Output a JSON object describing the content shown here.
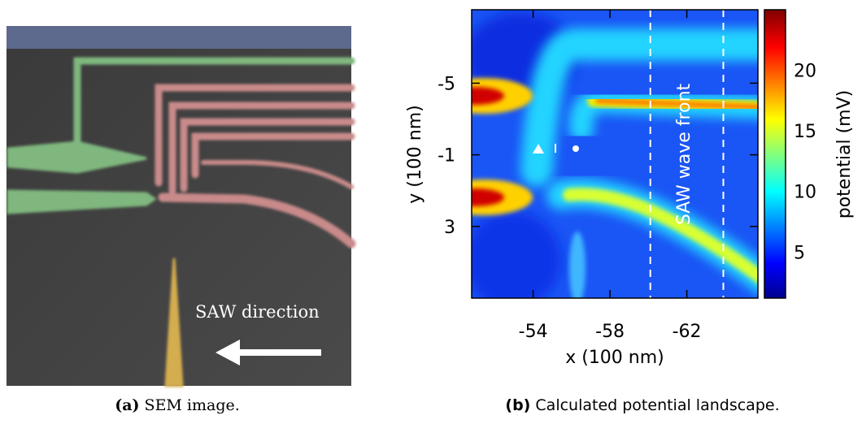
{
  "panel_a": {
    "label": "SAW direction",
    "caption_tag": "(a)",
    "caption": "SEM image."
  },
  "caption_tag": "(b)",
  "caption": "Calculated potential landscape.",
  "chart_data": {
    "type": "heatmap",
    "xlabel": "x (100 nm)",
    "ylabel": "y (100 nm)",
    "colorbar_label": "potential (mV)",
    "annotation": "SAW wave front",
    "xlim": [
      -50.8,
      -65.7
    ],
    "xticks": [
      -54,
      -58,
      -62
    ],
    "ylim": [
      -9.1,
      7.0
    ],
    "yticks": [
      -5,
      -1,
      3
    ],
    "clim": [
      1.2,
      25.0
    ],
    "cticks": [
      5,
      10,
      15,
      20
    ],
    "vlines": [
      -60.1,
      -63.9
    ]
  }
}
